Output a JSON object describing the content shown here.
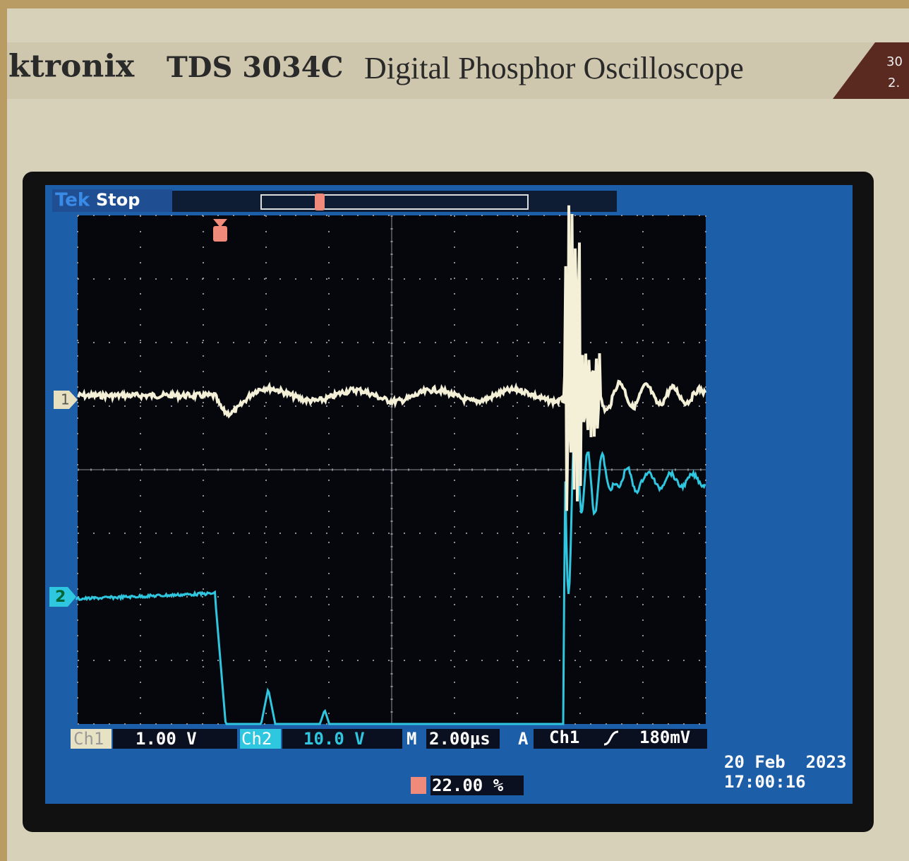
{
  "header": {
    "brand": "ktronix",
    "model": "TDS 3034C",
    "description": "Digital Phosphor Oscilloscope",
    "corner_top": "30",
    "corner_bottom": "2."
  },
  "screen": {
    "logo": "Tek",
    "status": "Stop",
    "ch1_marker": "1",
    "ch2_marker": "2",
    "readout": {
      "ch1_label": "Ch1",
      "ch1_scale": "1.00 V",
      "ch2_label": "Ch2",
      "ch2_scale": "10.0 V",
      "time_label": "M",
      "time_scale": "2.00µs",
      "trigger_label": "A",
      "trigger_source": "Ch1",
      "trigger_level": "180mV",
      "trigger_position": "22.00 %"
    },
    "date": "20 Feb  2023",
    "time": "17:00:16"
  }
}
